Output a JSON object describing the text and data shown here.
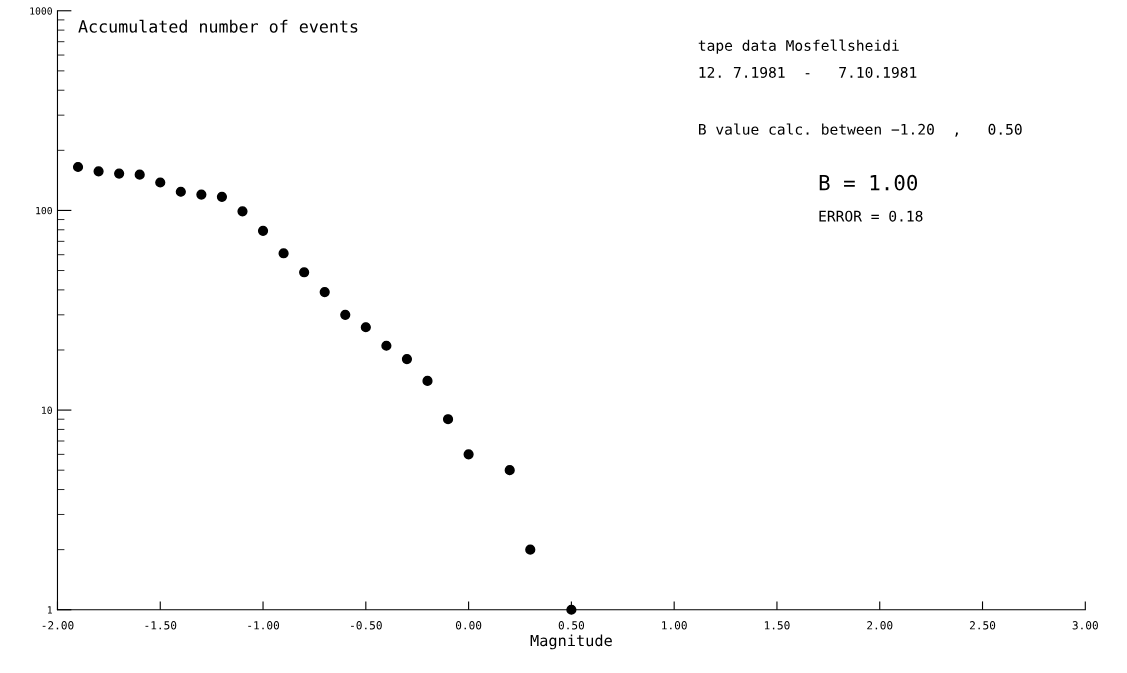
{
  "chart_data": {
    "type": "scatter",
    "title": "Accumulated number of events",
    "xlabel": "Magnitude",
    "annotations": [
      "tape data Mosfellsheidi",
      "12. 7.1981  -   7.10.1981",
      "B value calc. between −1.20  ,   0.50",
      "B = 1.00",
      "ERROR = 0.18"
    ],
    "x": [
      -1.9,
      -1.8,
      -1.7,
      -1.6,
      -1.5,
      -1.4,
      -1.3,
      -1.2,
      -1.1,
      -1.0,
      -0.9,
      -0.8,
      -0.7,
      -0.6,
      -0.5,
      -0.4,
      -0.3,
      -0.2,
      -0.1,
      0.0,
      0.2,
      0.3,
      0.5
    ],
    "series": [
      {
        "color": "#000000",
        "values": [
          165,
          157,
          153,
          151,
          138,
          124,
          120,
          117,
          99,
          79,
          61,
          49,
          39,
          30,
          26,
          21,
          18,
          14,
          9,
          6,
          5,
          2,
          1
        ]
      }
    ],
    "log": "y",
    "xlim": [
      -2.0,
      3.0
    ],
    "ylim": [
      1,
      1000
    ],
    "xticks": [
      {
        "value": -2.0,
        "label": "-2.00"
      },
      {
        "value": -1.5,
        "label": "-1.50"
      },
      {
        "value": -1.0,
        "label": "-1.00"
      },
      {
        "value": -0.5,
        "label": "-0.50"
      },
      {
        "value": 0.0,
        "label": "0.00"
      },
      {
        "value": 0.5,
        "label": "0.50"
      },
      {
        "value": 1.0,
        "label": "1.00"
      },
      {
        "value": 1.5,
        "label": "1.50"
      },
      {
        "value": 2.0,
        "label": "2.00"
      },
      {
        "value": 2.5,
        "label": "2.50"
      },
      {
        "value": 3.0,
        "label": "3.00"
      }
    ],
    "yticks": [
      1,
      10,
      100,
      1000
    ],
    "marker": "circle",
    "grid": false,
    "legend": false
  }
}
